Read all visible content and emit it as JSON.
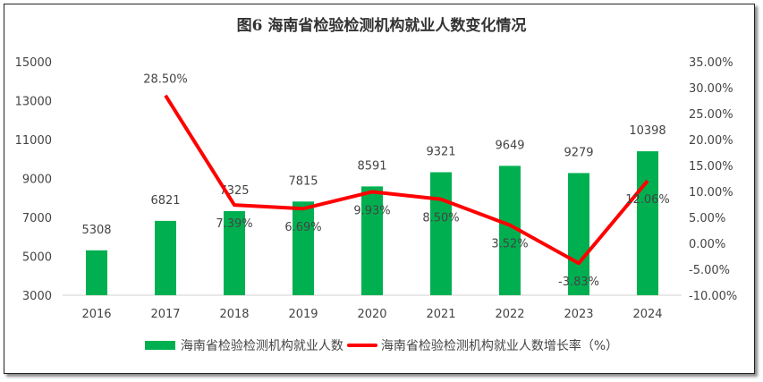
{
  "chart_data": {
    "type": "bar+line",
    "title": "图6  海南省检验检测机构就业人数变化情况",
    "categories": [
      "2016",
      "2017",
      "2018",
      "2019",
      "2020",
      "2021",
      "2022",
      "2023",
      "2024"
    ],
    "series": [
      {
        "name": "海南省检验检测机构就业人数",
        "type": "bar",
        "axis": "left",
        "color": "#00b050",
        "values": [
          5308,
          6821,
          7325,
          7815,
          8591,
          9321,
          9649,
          9279,
          10398
        ],
        "labels": [
          "5308",
          "6821",
          "7325",
          "7815",
          "8591",
          "9321",
          "9649",
          "9279",
          "10398"
        ]
      },
      {
        "name": "海南省检验检测机构就业人数增长率（%）",
        "type": "line",
        "axis": "right",
        "color": "#ff0000",
        "values": [
          null,
          28.5,
          7.39,
          6.69,
          9.93,
          8.5,
          3.52,
          -3.83,
          12.06
        ],
        "labels": [
          "",
          "28.50%",
          "7.39%",
          "6.69%",
          "9.93%",
          "8.50%",
          "3.52%",
          "-3.83%",
          "12.06%"
        ]
      }
    ],
    "left_axis": {
      "ylim": [
        3000,
        15000
      ],
      "ticks": [
        "3000",
        "5000",
        "7000",
        "9000",
        "11000",
        "13000",
        "15000"
      ]
    },
    "right_axis": {
      "ylim": [
        -10,
        35
      ],
      "ticks": [
        "-10.00%",
        "-5.00%",
        "0.00%",
        "5.00%",
        "10.00%",
        "15.00%",
        "20.00%",
        "25.00%",
        "30.00%",
        "35.00%"
      ]
    },
    "grid": false,
    "legend": "bottom"
  }
}
